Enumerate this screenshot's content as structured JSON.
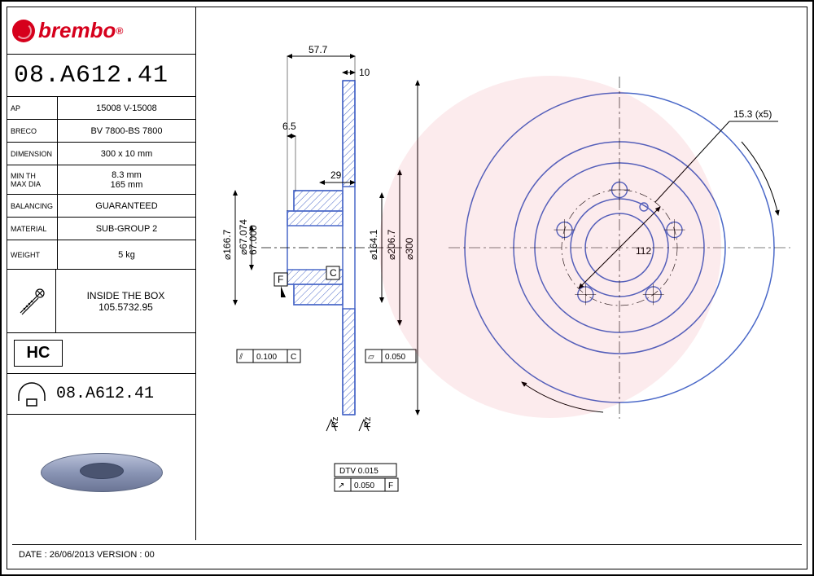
{
  "brand": "brembo",
  "part_number": "08.A612.41",
  "specs": {
    "ap": {
      "label": "AP",
      "value": "15008 V-15008"
    },
    "breco": {
      "label": "BRECO",
      "value": "BV 7800-BS 7800"
    },
    "dimension": {
      "label": "DIMENSION",
      "value": "300 x 10 mm"
    },
    "minth": {
      "label1": "MIN TH",
      "label2": "MAX DIA",
      "value1": "8.3 mm",
      "value2": "165 mm"
    },
    "balancing": {
      "label": "BALANCING",
      "value": "GUARANTEED"
    },
    "material": {
      "label": "MATERIAL",
      "value": "SUB-GROUP 2"
    },
    "weight": {
      "label": "WEIGHT",
      "value": "5 kg"
    }
  },
  "inside_box": {
    "label": "INSIDE THE BOX",
    "value": "105.5732.95"
  },
  "hc_label": "HC",
  "part_number_2": "08.A612.41",
  "footer": {
    "date_label": "DATE :",
    "date": "26/06/2013",
    "version_label": "VERSION :",
    "version": "00"
  },
  "drawing": {
    "profile": {
      "dim_57_7": "57.7",
      "dim_10": "10",
      "dim_6_5": "6.5",
      "dim_29": "29",
      "d166_7": "⌀166.7",
      "d67_074": "⌀67.074",
      "d67_000": "67.000",
      "d164_1": "⌀164.1",
      "d206_7": "⌀206.7",
      "d300": "⌀300",
      "datum_f": "F",
      "datum_c": "C",
      "tol_0100_c": "0.100",
      "tol_0050": "0.050",
      "dtv": "DTV 0.015",
      "tol_0050_f": "0.050",
      "rz": "Rz",
      "color_outline": "#4a68c8",
      "color_hatch": "#4a68c8"
    },
    "front": {
      "bolt_spec": "15.3 (x5)",
      "pcd": "112",
      "outer_d": 300,
      "hub_d": 67,
      "bolt_circle_d": 112,
      "bolt_hole_d": 15.3,
      "bolt_count": 5,
      "color_outline": "#4a68c8"
    }
  },
  "colors": {
    "brand_red": "#d6001c",
    "line_blue": "#4a68c8",
    "black": "#000000"
  }
}
